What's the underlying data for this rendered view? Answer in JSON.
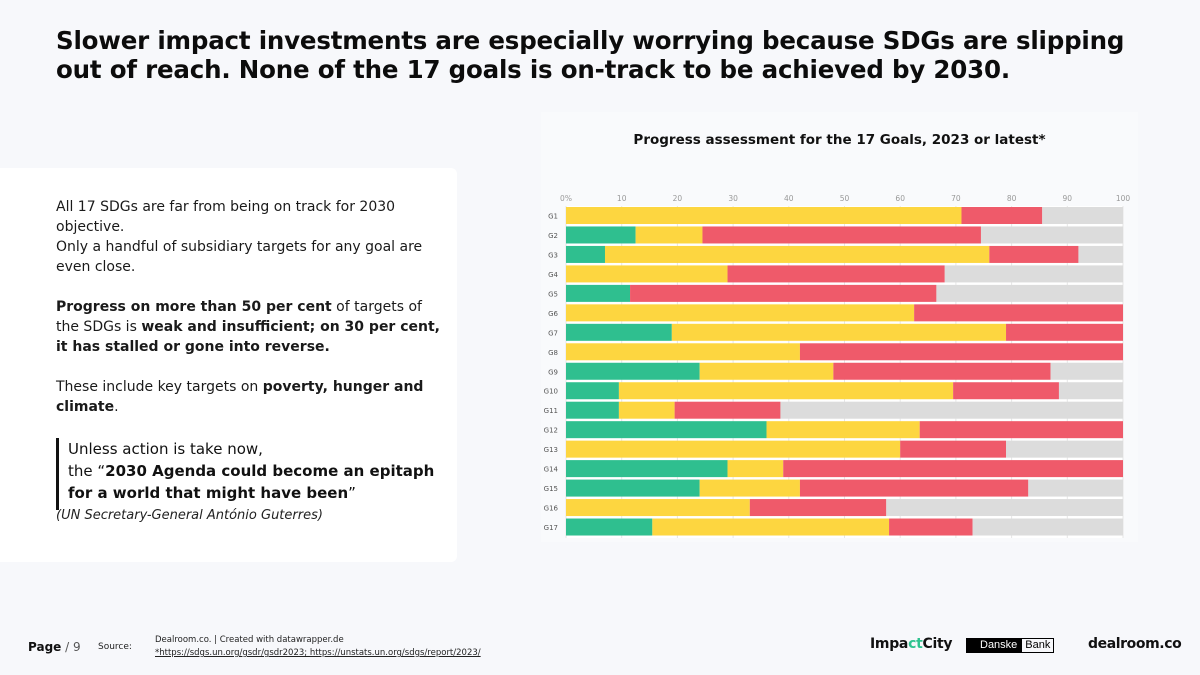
{
  "headline": "Slower impact investments are especially worrying because SDGs are slipping out of reach. None of the 17 goals is on-track to be achieved by 2030.",
  "left": {
    "p1_line1": "All 17 SDGs are far from being on track for 2030 objective.",
    "p1_line2": "Only a handful of subsidiary targets for any goal are even close.",
    "p2_bold1": "Progress on more than 50 per cent",
    "p2_text1": " of targets of the SDGs is ",
    "p2_bold2": "weak and insufficient; on 30 per cent, it has stalled or gone into reverse.",
    "p3_text1": "These include key targets on ",
    "p3_bold": "poverty, hunger and climate",
    "p3_text2": ".",
    "quote_line1": "Unless action is take now,",
    "quote_pre": "the “",
    "quote_bold": "2030 Agenda could become an epitaph for a world that might have been",
    "quote_post": "”",
    "attribution": "(UN Secretary-General António Guterres)"
  },
  "chart_data": {
    "type": "bar",
    "orientation": "horizontal",
    "stacked": true,
    "title": "Progress assessment for the 17 Goals, 2023 or latest*",
    "xlim": [
      0,
      100
    ],
    "xticks": [
      "0%",
      "10",
      "20",
      "30",
      "40",
      "50",
      "60",
      "70",
      "80",
      "90",
      "100"
    ],
    "categories": [
      "G1",
      "G2",
      "G3",
      "G4",
      "G5",
      "G6",
      "G7",
      "G8",
      "G9",
      "G10",
      "G11",
      "G12",
      "G13",
      "G14",
      "G15",
      "G16",
      "G17"
    ],
    "series": [
      {
        "color": "#2fbf8f",
        "values": [
          0,
          12.5,
          7,
          0,
          11.5,
          0,
          19,
          0,
          24,
          9.5,
          9.5,
          36,
          0,
          29,
          24,
          0,
          15.5
        ]
      },
      {
        "color": "#fdd640",
        "values": [
          71,
          12,
          69,
          29,
          0,
          62.5,
          60,
          42,
          24,
          60,
          10,
          27.5,
          60,
          10,
          18,
          33,
          42.5
        ]
      },
      {
        "color": "#ef5a6a",
        "values": [
          14.5,
          50,
          16,
          39,
          55,
          37.5,
          21,
          58,
          39,
          19,
          19,
          36.5,
          19,
          61,
          41,
          24.5,
          15
        ]
      },
      {
        "color": "#dcdcdc",
        "values": [
          14.5,
          25.5,
          8,
          32,
          33.5,
          0,
          0,
          0,
          13,
          11.5,
          61.5,
          0,
          21,
          0,
          17,
          42.5,
          27
        ]
      }
    ],
    "grid": true
  },
  "footer": {
    "page_label": "Page",
    "page_sep": " / 9",
    "source_label": "Source:",
    "source_line1": "Dealroom.co.  | Created with datawrapper.de",
    "source_line2": "*https://sdgs.un.org/gsdr/gsdr2023; https://unstats.un.org/sdgs/report/2023/"
  },
  "logos": {
    "impact_part1": "Impa",
    "impact_accent": "ct",
    "impact_part2": "City",
    "danske_1": "Danske",
    "danske_2": "Bank",
    "dealroom": "dealroom.co"
  }
}
